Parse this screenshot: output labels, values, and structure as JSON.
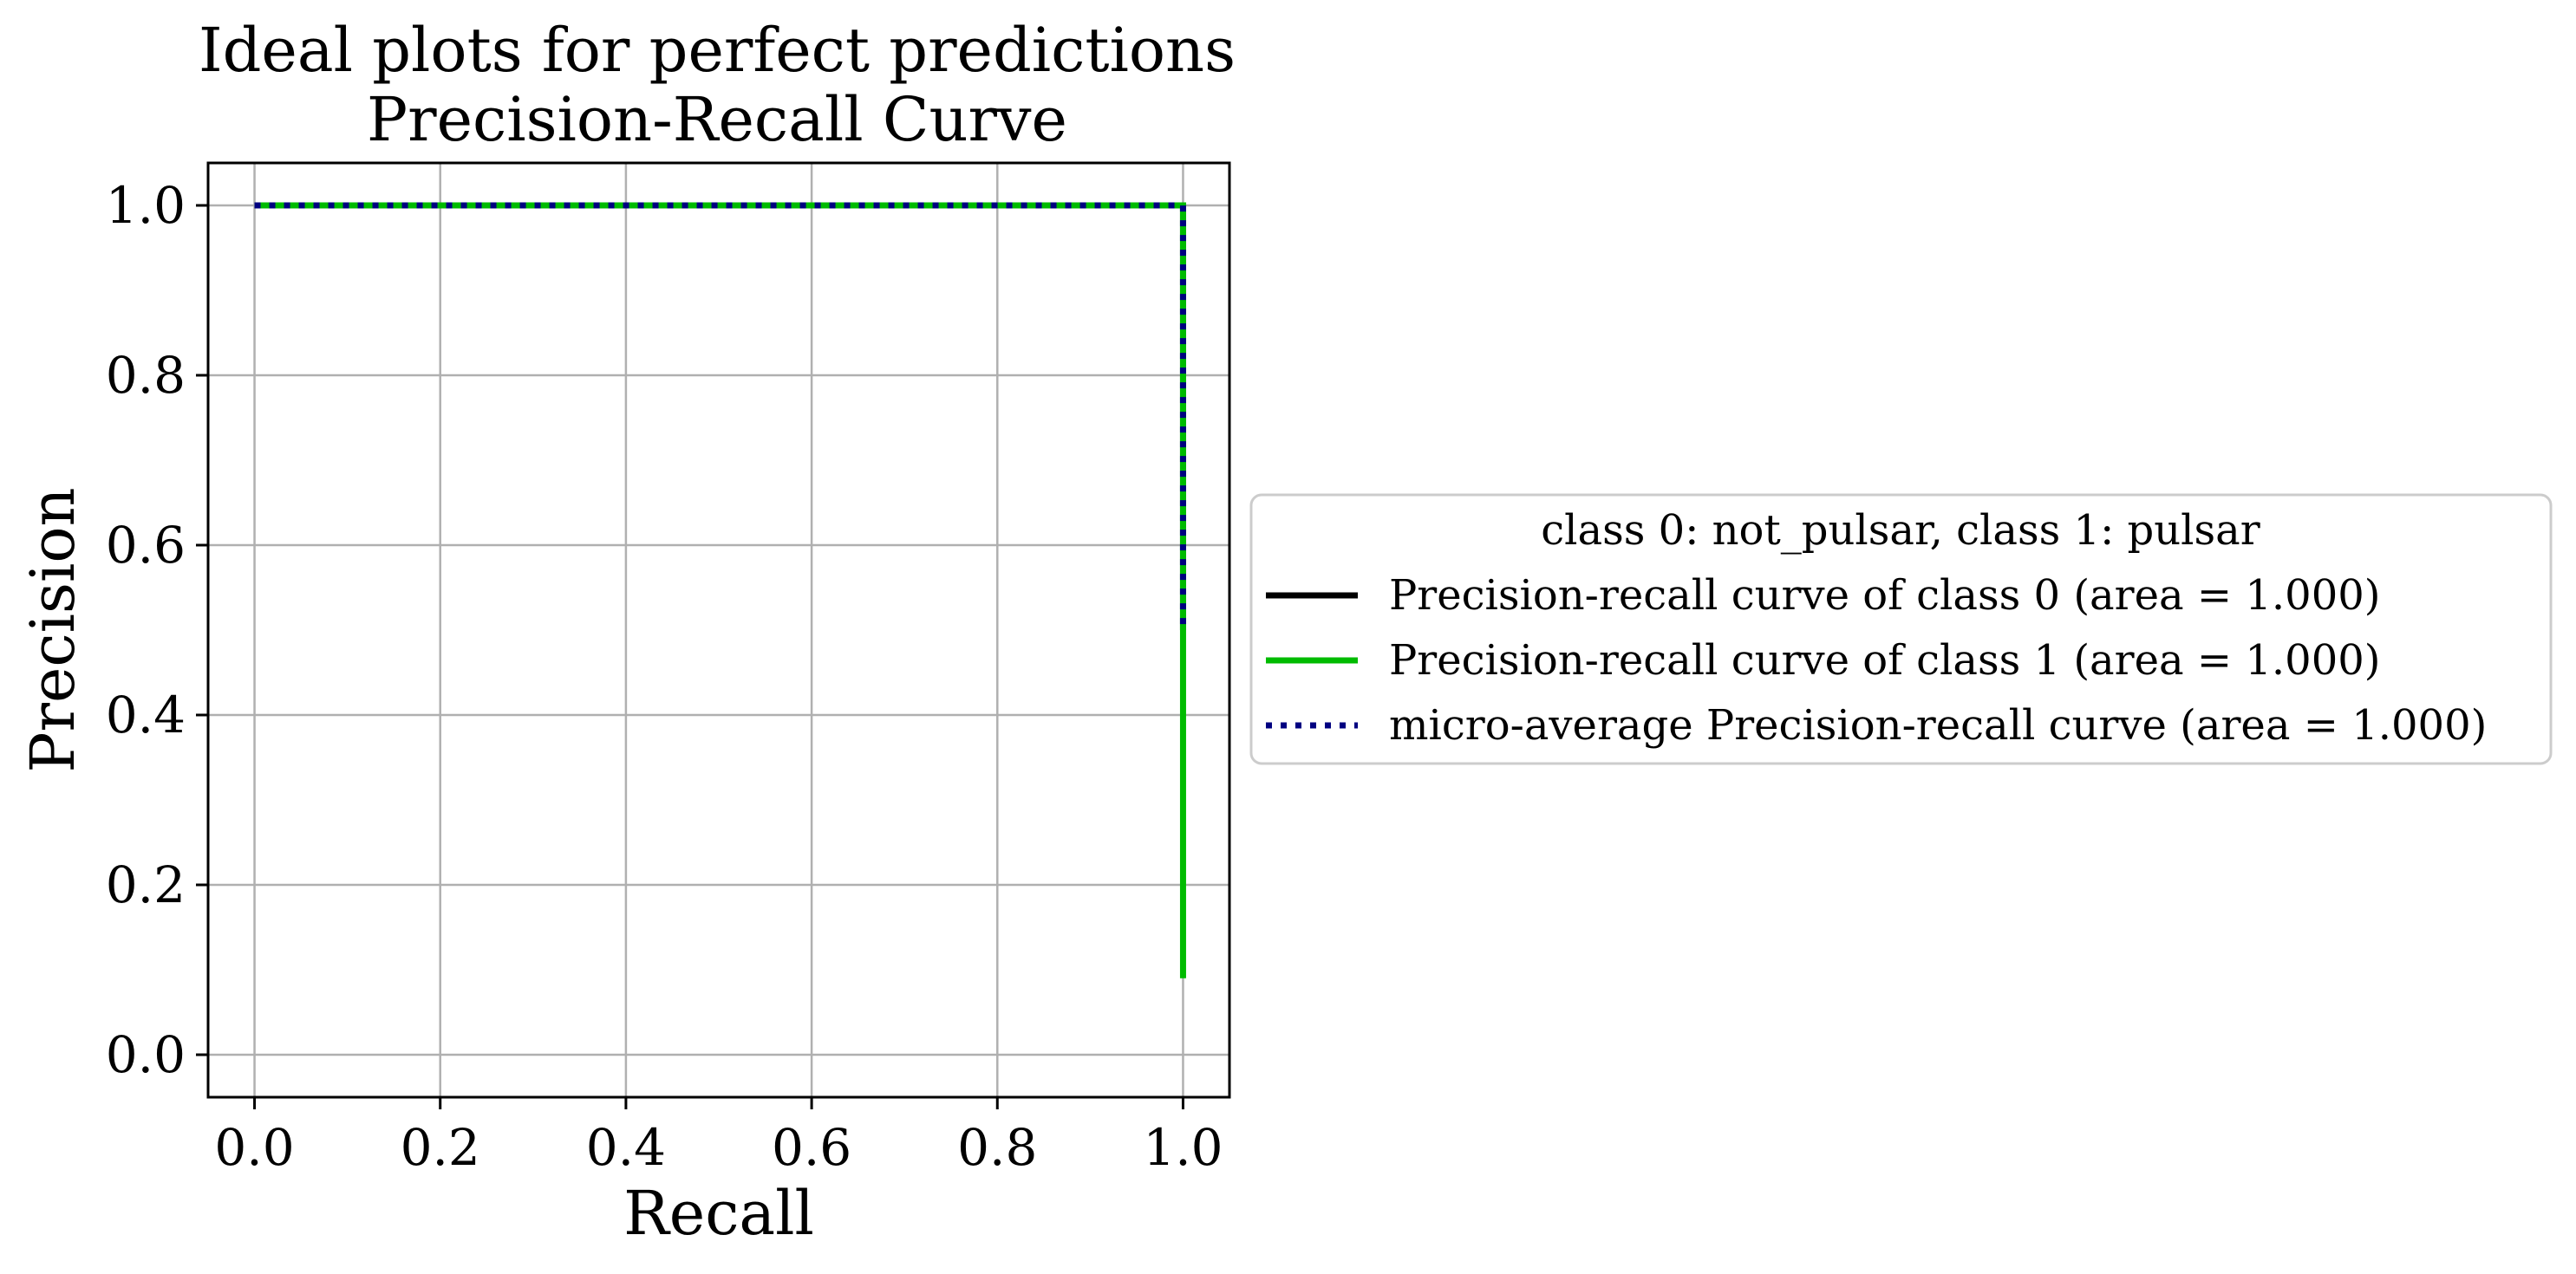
{
  "chart_data": {
    "type": "line",
    "title": "Ideal plots for perfect predictions",
    "subtitle": "Precision-Recall Curve",
    "xlabel": "Recall",
    "ylabel": "Precision",
    "xlim": [
      -0.05,
      1.05
    ],
    "ylim": [
      -0.05,
      1.05
    ],
    "x_ticks": [
      0.0,
      0.2,
      0.4,
      0.6,
      0.8,
      1.0
    ],
    "y_ticks": [
      0.0,
      0.2,
      0.4,
      0.6,
      0.8,
      1.0
    ],
    "x_tick_labels": [
      "0.0",
      "0.2",
      "0.4",
      "0.6",
      "0.8",
      "1.0"
    ],
    "y_tick_labels": [
      "0.0",
      "0.2",
      "0.4",
      "0.6",
      "0.8",
      "1.0"
    ],
    "grid": true,
    "legend": {
      "title": "class 0: not_pulsar, class 1: pulsar",
      "placement": "outside-right"
    },
    "series": [
      {
        "name": "Precision-recall curve of class 0 (area = 1.000)",
        "color": "#000000",
        "style": "solid",
        "x": [
          0.0,
          1.0,
          1.0
        ],
        "y": [
          1.0,
          1.0,
          0.5
        ]
      },
      {
        "name": "Precision-recall curve of class 1 (area = 1.000)",
        "color": "#00bb00",
        "style": "solid",
        "x": [
          0.0,
          1.0,
          1.0
        ],
        "y": [
          1.0,
          1.0,
          0.09
        ]
      },
      {
        "name": "micro-average Precision-recall curve (area = 1.000)",
        "color": "#000080",
        "style": "dotted",
        "x": [
          0.0,
          1.0,
          1.0
        ],
        "y": [
          1.0,
          1.0,
          0.5
        ]
      }
    ]
  }
}
